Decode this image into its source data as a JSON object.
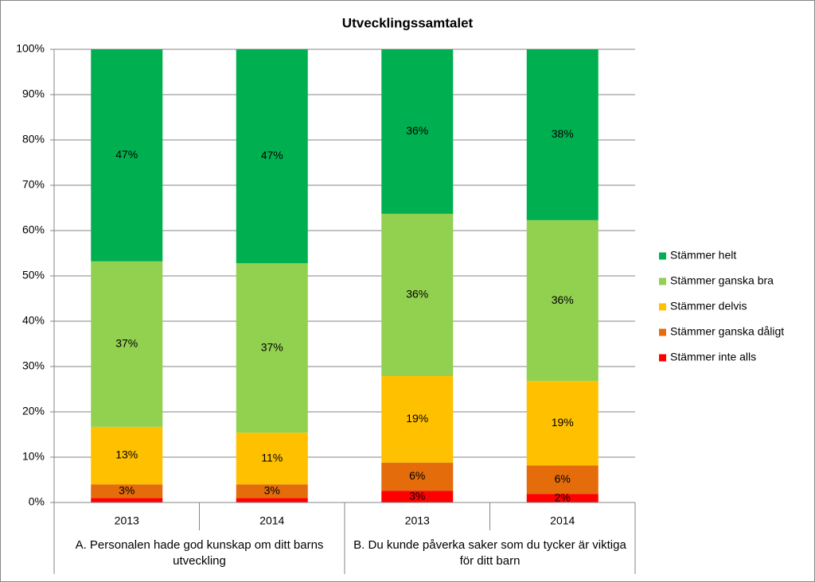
{
  "chart_data": {
    "type": "stacked_bar",
    "title": "Utvecklingssamtalet",
    "categories": [
      "2013",
      "2014",
      "2013",
      "2014"
    ],
    "groups": [
      {
        "label": "A. Personalen hade god kunskap om ditt barns utveckling",
        "span": 2
      },
      {
        "label": "B. Du kunde påverka saker som du tycker är viktiga för ditt barn",
        "span": 2
      }
    ],
    "series": [
      {
        "name": "Stämmer inte alls",
        "color": "#ff0000",
        "values": [
          1.0,
          1.0,
          2.6,
          1.9
        ],
        "value_labels": [
          null,
          null,
          "3%",
          "2%"
        ]
      },
      {
        "name": "Stämmer ganska dåligt",
        "color": "#e46c0a",
        "values": [
          3.0,
          3.0,
          6.2,
          6.3
        ],
        "value_labels": [
          "3%",
          "3%",
          "6%",
          "6%"
        ]
      },
      {
        "name": "Stämmer delvis",
        "color": "#ffc000",
        "values": [
          12.7,
          11.4,
          19.1,
          18.6
        ],
        "value_labels": [
          "13%",
          "11%",
          "19%",
          "19%"
        ]
      },
      {
        "name": "Stämmer ganska bra",
        "color": "#92d050",
        "values": [
          36.5,
          37.4,
          35.8,
          35.5
        ],
        "value_labels": [
          "37%",
          "37%",
          "36%",
          "36%"
        ]
      },
      {
        "name": "Stämmer helt",
        "color": "#00b050",
        "values": [
          46.8,
          47.2,
          36.3,
          37.7
        ],
        "value_labels": [
          "47%",
          "47%",
          "36%",
          "38%"
        ]
      }
    ],
    "ylim": [
      0,
      100
    ],
    "yticks": [
      {
        "value": 0,
        "label": "0%"
      },
      {
        "value": 10,
        "label": "10%"
      },
      {
        "value": 20,
        "label": "20%"
      },
      {
        "value": 30,
        "label": "30%"
      },
      {
        "value": 40,
        "label": "40%"
      },
      {
        "value": 50,
        "label": "50%"
      },
      {
        "value": 60,
        "label": "60%"
      },
      {
        "value": 70,
        "label": "70%"
      },
      {
        "value": 80,
        "label": "80%"
      },
      {
        "value": 90,
        "label": "90%"
      },
      {
        "value": 100,
        "label": "100%"
      }
    ],
    "grid": true,
    "legend": "right"
  }
}
